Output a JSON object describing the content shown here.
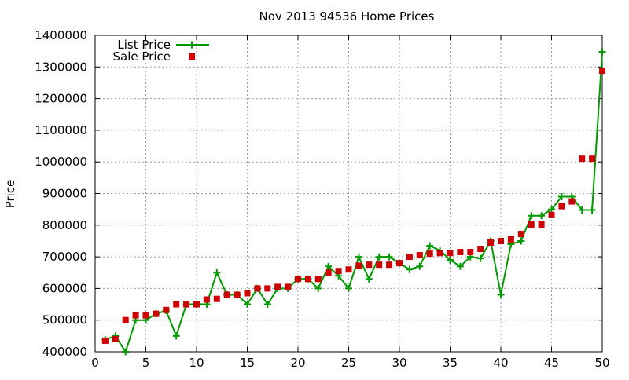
{
  "chart_data": {
    "type": "line",
    "title": "Nov 2013 94536 Home Prices",
    "xlabel": "",
    "ylabel": "Price",
    "xlim": [
      0,
      50
    ],
    "ylim": [
      400000,
      1400000
    ],
    "x_ticks": [
      0,
      5,
      10,
      15,
      20,
      25,
      30,
      35,
      40,
      45,
      50
    ],
    "y_ticks": [
      400000,
      500000,
      600000,
      700000,
      800000,
      900000,
      1000000,
      1100000,
      1200000,
      1300000,
      1400000
    ],
    "grid": true,
    "legend_position": "top-left",
    "series": [
      {
        "name": "List Price",
        "style": "linespoints",
        "marker": "plus",
        "color": "#009900",
        "x": [
          1,
          2,
          3,
          4,
          5,
          6,
          7,
          8,
          9,
          10,
          11,
          12,
          13,
          14,
          15,
          16,
          17,
          18,
          19,
          20,
          21,
          22,
          23,
          24,
          25,
          26,
          27,
          28,
          29,
          30,
          31,
          32,
          33,
          34,
          35,
          36,
          37,
          38,
          39,
          40,
          41,
          42,
          43,
          44,
          45,
          46,
          47,
          48,
          49,
          50
        ],
        "values": [
          438000,
          450000,
          400000,
          500000,
          500000,
          520000,
          530000,
          450000,
          550000,
          550000,
          550000,
          650000,
          580000,
          580000,
          550000,
          600000,
          550000,
          600000,
          600000,
          630000,
          630000,
          600000,
          670000,
          640000,
          600000,
          700000,
          630000,
          700000,
          700000,
          680000,
          660000,
          670000,
          735000,
          720000,
          690000,
          670000,
          700000,
          695000,
          750000,
          580000,
          740000,
          750000,
          830000,
          830000,
          850000,
          890000,
          890000,
          848000,
          848000,
          1348000
        ]
      },
      {
        "name": "Sale Price",
        "style": "points",
        "marker": "square",
        "color": "#cc0000",
        "x": [
          1,
          2,
          3,
          4,
          5,
          6,
          7,
          8,
          9,
          10,
          11,
          12,
          13,
          14,
          15,
          16,
          17,
          18,
          19,
          20,
          21,
          22,
          23,
          24,
          25,
          26,
          27,
          28,
          29,
          30,
          31,
          32,
          33,
          34,
          35,
          36,
          37,
          38,
          39,
          40,
          41,
          42,
          43,
          44,
          45,
          46,
          47,
          48,
          49,
          50
        ],
        "values": [
          435000,
          440000,
          500000,
          515000,
          515000,
          520000,
          532000,
          550000,
          550000,
          550000,
          565000,
          567000,
          580000,
          580000,
          585000,
          600000,
          600000,
          605000,
          605000,
          630000,
          630000,
          630000,
          650000,
          655000,
          660000,
          672000,
          675000,
          675000,
          675000,
          680000,
          700000,
          705000,
          710000,
          712000,
          712000,
          715000,
          715000,
          725000,
          745000,
          750000,
          755000,
          772000,
          802000,
          802000,
          832000,
          860000,
          875000,
          1010000,
          1010000,
          1288000
        ]
      }
    ]
  }
}
